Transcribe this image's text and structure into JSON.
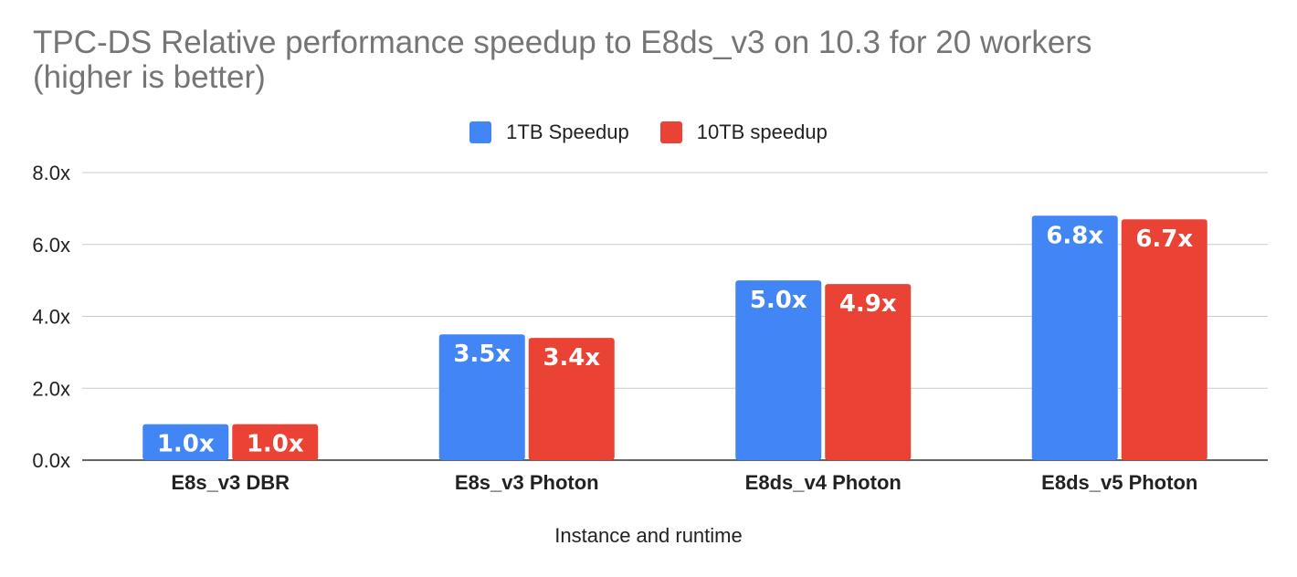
{
  "chart_data": {
    "type": "bar",
    "title": "TPC-DS Relative performance speedup to E8ds_v3 on 10.3  for 20 workers",
    "subtitle": "(higher is better)",
    "xlabel": "Instance and runtime",
    "ylabel": "",
    "categories": [
      "E8s_v3 DBR",
      "E8s_v3 Photon",
      "E8ds_v4 Photon",
      "E8ds_v5 Photon"
    ],
    "series": [
      {
        "name": "1TB Speedup",
        "values": [
          1.0,
          3.5,
          5.0,
          6.8
        ],
        "labels": [
          "1.0x",
          "3.5x",
          "5.0x",
          "6.8x"
        ],
        "color": "#4285F4"
      },
      {
        "name": "10TB speedup",
        "values": [
          1.0,
          3.4,
          4.9,
          6.7
        ],
        "labels": [
          "1.0x",
          "3.4x",
          "4.9x",
          "6.7x"
        ],
        "color": "#EA4335"
      }
    ],
    "yticks": [
      "0.0x",
      "2.0x",
      "4.0x",
      "6.0x",
      "8.0x"
    ],
    "ylim": [
      0,
      8
    ],
    "grid": true,
    "legend": "top-center"
  }
}
